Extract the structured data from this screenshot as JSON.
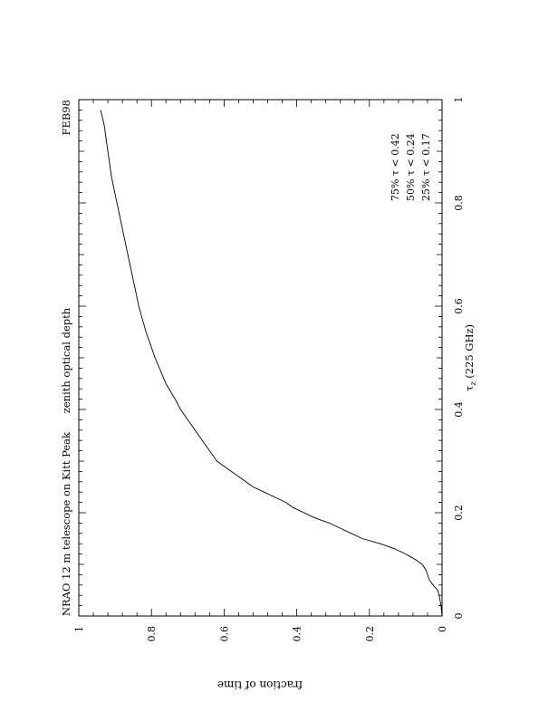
{
  "chart_data": {
    "type": "line",
    "orientation": "rotated 90 degrees counter-clockwise (landscape plot on portrait page)",
    "title_left": "NRAO 12 m telescope on Kitt Peak",
    "title_center": "zenith optical depth",
    "title_right": "FEB98",
    "xlabel": "τz (225 GHz)",
    "xlabel_symbol": "τ",
    "xlabel_subscript": "z",
    "xlabel_rest": " (225 GHz)",
    "ylabel": "fraction of time",
    "xlim": [
      0,
      1
    ],
    "ylim": [
      0,
      1
    ],
    "x_ticks": [
      "0",
      "0.2",
      "0.4",
      "0.6",
      "0.8",
      "1"
    ],
    "y_ticks": [
      "0",
      "0.2",
      "0.4",
      "0.6",
      "0.8",
      "1"
    ],
    "annotations": [
      "75%  τ < 0.42",
      "50%  τ < 0.24",
      "25%  τ < 0.17"
    ],
    "grid": false,
    "series": [
      {
        "x": [
          0.0,
          0.02,
          0.04,
          0.05,
          0.06,
          0.07,
          0.08,
          0.09,
          0.1,
          0.11,
          0.12,
          0.13,
          0.14,
          0.15,
          0.16,
          0.17,
          0.18,
          0.19,
          0.2,
          0.21,
          0.22,
          0.23,
          0.24,
          0.25,
          0.26,
          0.27,
          0.28,
          0.29,
          0.3,
          0.31,
          0.32,
          0.34,
          0.36,
          0.38,
          0.4,
          0.42,
          0.45,
          0.5,
          0.55,
          0.6,
          0.65,
          0.7,
          0.75,
          0.8,
          0.85,
          0.9,
          0.95,
          0.98
        ],
        "y": [
          0.0,
          0.003,
          0.008,
          0.012,
          0.025,
          0.035,
          0.04,
          0.045,
          0.055,
          0.075,
          0.1,
          0.13,
          0.17,
          0.22,
          0.25,
          0.28,
          0.31,
          0.35,
          0.38,
          0.41,
          0.43,
          0.46,
          0.49,
          0.52,
          0.54,
          0.56,
          0.58,
          0.6,
          0.62,
          0.63,
          0.64,
          0.66,
          0.68,
          0.7,
          0.72,
          0.735,
          0.76,
          0.79,
          0.815,
          0.835,
          0.85,
          0.865,
          0.88,
          0.895,
          0.91,
          0.92,
          0.93,
          0.94
        ]
      }
    ]
  }
}
